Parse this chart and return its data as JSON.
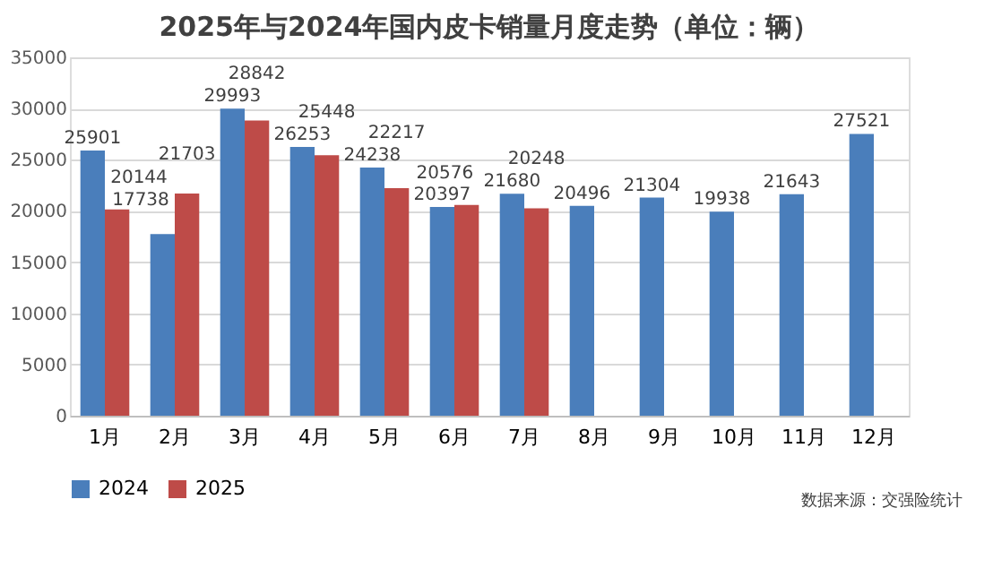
{
  "chart_data": {
    "type": "bar",
    "title": "2025年与2024年国内皮卡销量月度走势（单位：辆）",
    "categories": [
      "1月",
      "2月",
      "3月",
      "4月",
      "5月",
      "6月",
      "7月",
      "8月",
      "9月",
      "10月",
      "11月",
      "12月"
    ],
    "series": [
      {
        "name": "2024",
        "color": "#4a7ebb",
        "values": [
          25901,
          17738,
          29993,
          26253,
          24238,
          20397,
          21680,
          20496,
          21304,
          19938,
          21643,
          27521
        ]
      },
      {
        "name": "2025",
        "color": "#be4b48",
        "values": [
          20144,
          21703,
          28842,
          25448,
          22217,
          20576,
          20248,
          null,
          null,
          null,
          null,
          null
        ]
      }
    ],
    "ylim": [
      0,
      35000
    ],
    "yticks": [
      0,
      5000,
      10000,
      15000,
      20000,
      25000,
      30000,
      35000
    ],
    "grid": "y",
    "legend": "bottom",
    "data_labels": true,
    "annotations": [
      "数据来源：交强险统计"
    ]
  }
}
